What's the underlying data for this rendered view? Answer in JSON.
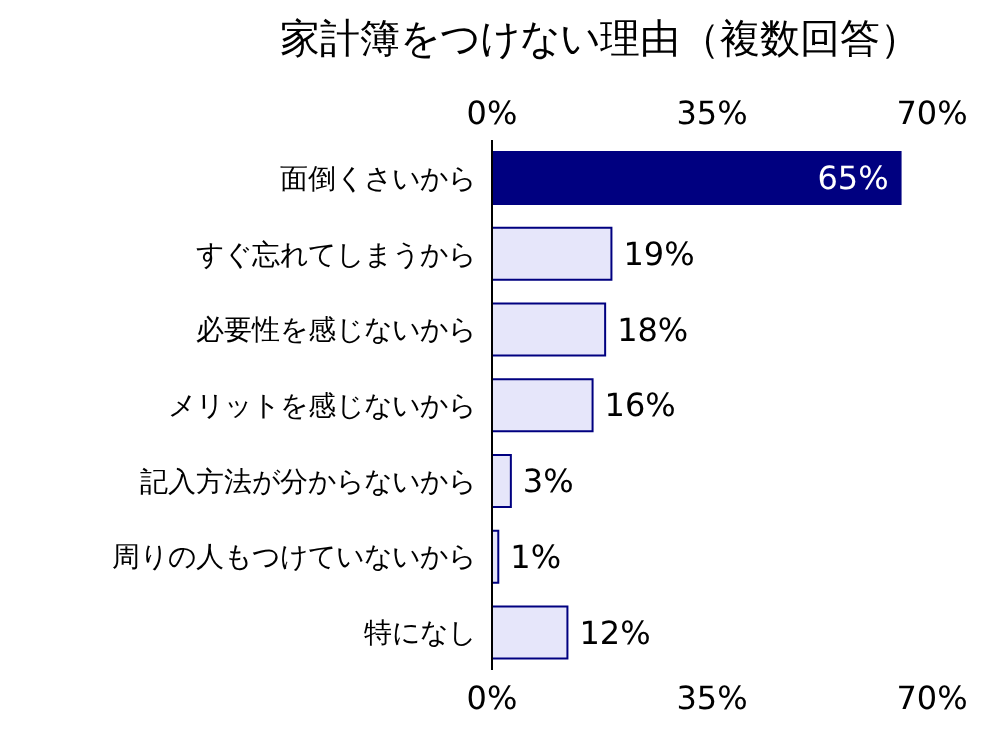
{
  "chart_data": {
    "type": "bar",
    "orientation": "horizontal",
    "title": "家計簿をつけない理由（複数回答）",
    "categories": [
      "面倒くさいから",
      "すぐ忘れてしまうから",
      "必要性を感じないから",
      "メリットを感じないから",
      "記入方法が分からないから",
      "周りの人もつけていないから",
      "特になし"
    ],
    "values": [
      65,
      19,
      18,
      16,
      3,
      1,
      12
    ],
    "colors": [
      "#000080",
      "#e6e6fa",
      "#e6e6fa",
      "#e6e6fa",
      "#e6e6fa",
      "#e6e6fa",
      "#e6e6fa"
    ],
    "value_labels": [
      "65%",
      "19%",
      "18%",
      "16%",
      "3%",
      "1%",
      "12%"
    ],
    "xlim": [
      0,
      70
    ],
    "xticks": [
      {
        "value": 0,
        "label": "0%"
      },
      {
        "value": 35,
        "label": "35%"
      },
      {
        "value": 70,
        "label": "70%"
      }
    ],
    "x2lim": [
      0,
      70
    ],
    "x2ticks": [
      {
        "value": 0,
        "label": "0%"
      },
      {
        "value": 35,
        "label": "35%"
      },
      {
        "value": 70,
        "label": "70%"
      }
    ],
    "grid": false
  }
}
